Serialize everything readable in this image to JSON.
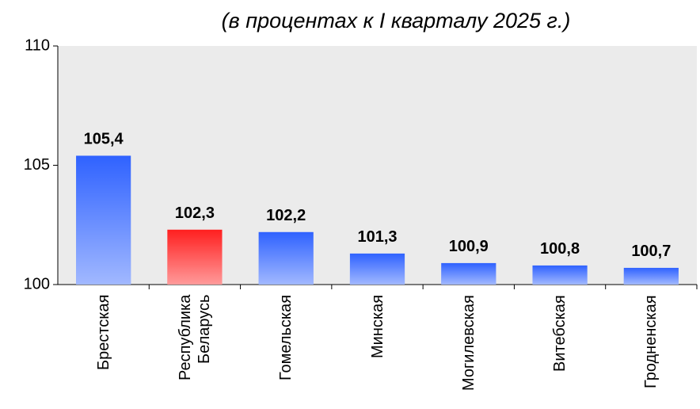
{
  "chart_data": {
    "type": "bar",
    "title": "(в процентах к I кварталу 2025 г.)",
    "categories": [
      "Брестская",
      "Республика Беларусь",
      "Гомельская",
      "Минская",
      "Могилевская",
      "Витебская",
      "Гродненская"
    ],
    "values": [
      105.4,
      102.3,
      102.2,
      101.3,
      100.9,
      100.8,
      100.7
    ],
    "value_labels": [
      "105,4",
      "102,3",
      "102,2",
      "101,3",
      "100,9",
      "100,8",
      "100,7"
    ],
    "colors": [
      "#2f62ff",
      "#ff1f1f",
      "#2f62ff",
      "#2f62ff",
      "#2f62ff",
      "#2f62ff",
      "#2f62ff"
    ],
    "ylim": [
      100,
      110
    ],
    "yticks": [
      100,
      105,
      110
    ],
    "grid": false
  }
}
